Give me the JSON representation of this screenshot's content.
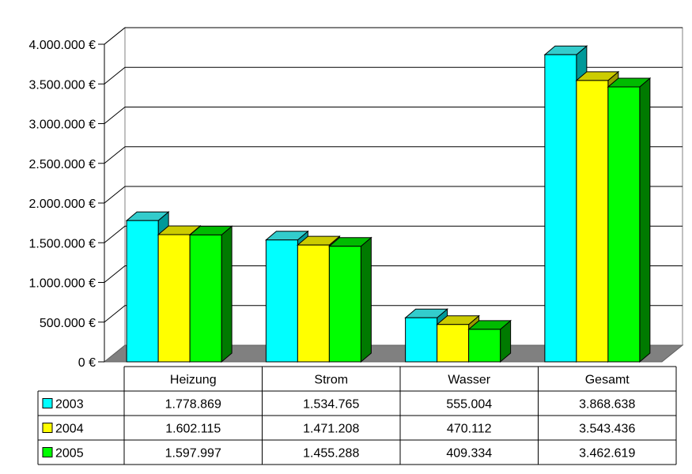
{
  "chart_data": {
    "type": "bar",
    "categories": [
      "Heizung",
      "Strom",
      "Wasser",
      "Gesamt"
    ],
    "series": [
      {
        "name": "2003",
        "color": "#00ffff",
        "side": "#009999",
        "top": "#33cccc",
        "values": [
          1778869,
          1534765,
          555004,
          3868638
        ],
        "labels": [
          "1.778.869",
          "1.534.765",
          "555.004",
          "3.868.638"
        ]
      },
      {
        "name": "2004",
        "color": "#ffff00",
        "side": "#999900",
        "top": "#cccc00",
        "values": [
          1602115,
          1471208,
          470112,
          3543436
        ],
        "labels": [
          "1.602.115",
          "1.471.208",
          "470.112",
          "3.543.436"
        ]
      },
      {
        "name": "2005",
        "color": "#00ff00",
        "side": "#007a00",
        "top": "#00bb00",
        "values": [
          1597997,
          1455288,
          409334,
          3462619
        ],
        "labels": [
          "1.597.997",
          "1.455.288",
          "409.334",
          "3.462.619"
        ]
      }
    ],
    "ylim": [
      0,
      4000000
    ],
    "yticks": [
      0,
      500000,
      1000000,
      1500000,
      2000000,
      2500000,
      3000000,
      3500000,
      4000000
    ],
    "ytick_labels": [
      "0 €",
      "500.000 €",
      "1.000.000 €",
      "1.500.000 €",
      "2.000.000 €",
      "2.500.000 €",
      "3.000.000 €",
      "3.500.000 €",
      "4.000.000 €"
    ],
    "grid": true,
    "legend": "data-table-left",
    "style": "3d-clustered-column"
  }
}
